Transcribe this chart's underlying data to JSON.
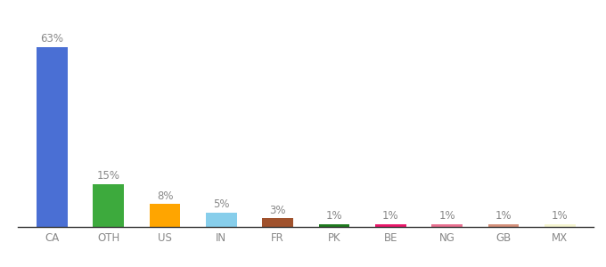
{
  "categories": [
    "CA",
    "OTH",
    "US",
    "IN",
    "FR",
    "PK",
    "BE",
    "NG",
    "GB",
    "MX"
  ],
  "values": [
    63,
    15,
    8,
    5,
    3,
    1,
    1,
    1,
    1,
    1
  ],
  "bar_colors": [
    "#4A6FD4",
    "#3DAA3D",
    "#FFA500",
    "#87CEEB",
    "#A0522D",
    "#1E7A1E",
    "#E8186A",
    "#E87090",
    "#D4907A",
    "#F5F5D0"
  ],
  "labels": [
    "63%",
    "15%",
    "8%",
    "5%",
    "3%",
    "1%",
    "1%",
    "1%",
    "1%",
    "1%"
  ],
  "label_fontsize": 8.5,
  "tick_fontsize": 8.5,
  "label_color": "#888888",
  "tick_color": "#888888",
  "ylim": [
    0,
    72
  ],
  "bar_width": 0.55,
  "background_color": "#ffffff"
}
